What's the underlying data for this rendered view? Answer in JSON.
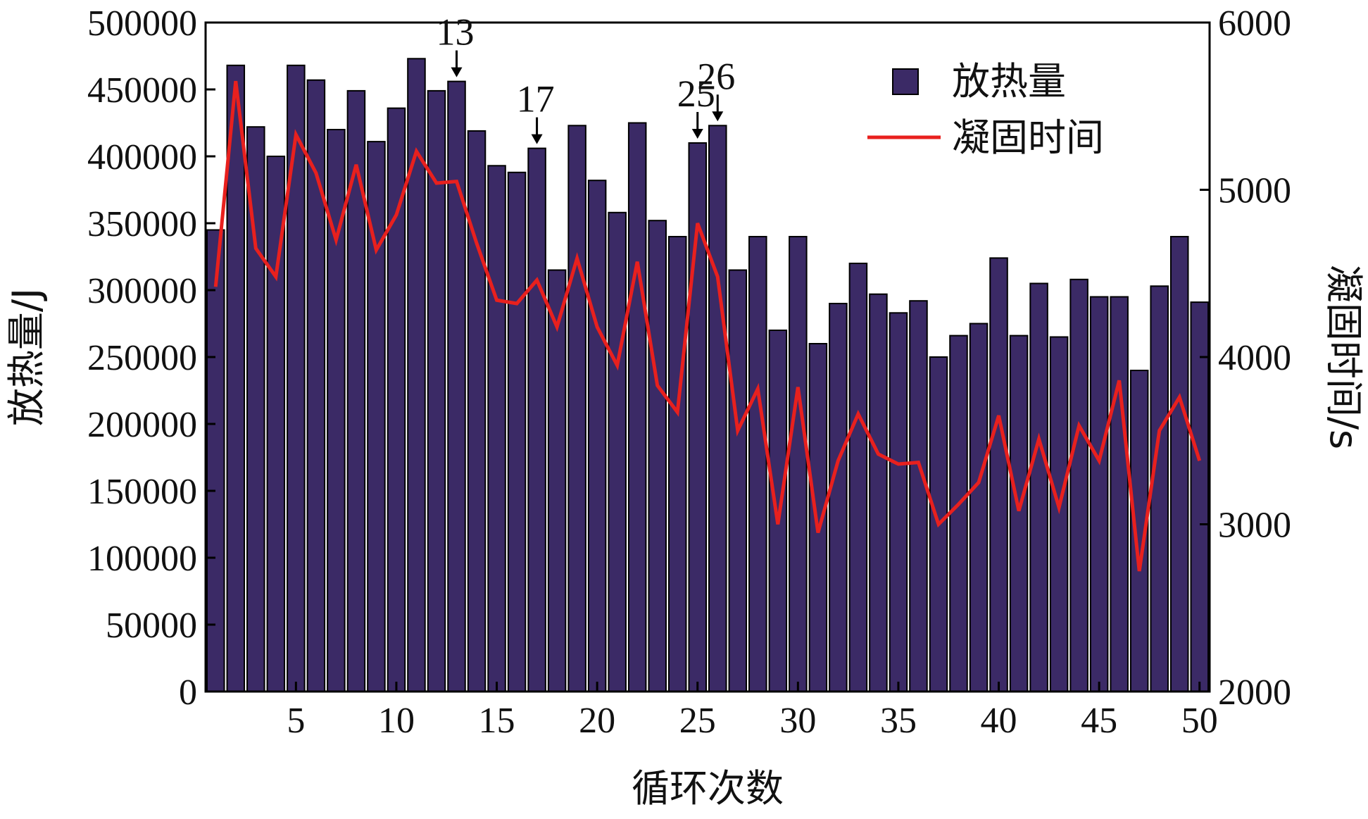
{
  "chart_data": {
    "type": "bar+line",
    "categories": [
      1,
      2,
      3,
      4,
      5,
      6,
      7,
      8,
      9,
      10,
      11,
      12,
      13,
      14,
      15,
      16,
      17,
      18,
      19,
      20,
      21,
      22,
      23,
      24,
      25,
      26,
      27,
      28,
      29,
      30,
      31,
      32,
      33,
      34,
      35,
      36,
      37,
      38,
      39,
      40,
      41,
      42,
      43,
      44,
      45,
      46,
      47,
      48,
      49,
      50
    ],
    "series": [
      {
        "name": "放热量",
        "type": "bar",
        "axis": "left",
        "values": [
          345000,
          468000,
          422000,
          400000,
          468000,
          457000,
          420000,
          449000,
          411000,
          436000,
          473000,
          449000,
          456000,
          419000,
          393000,
          388000,
          406000,
          315000,
          423000,
          382000,
          358000,
          425000,
          352000,
          340000,
          410000,
          423000,
          315000,
          340000,
          270000,
          340000,
          260000,
          290000,
          320000,
          297000,
          283000,
          292000,
          250000,
          266000,
          275000,
          324000,
          266000,
          305000,
          265000,
          308000,
          295000,
          295000,
          240000,
          303000,
          340000,
          291000
        ]
      },
      {
        "name": "凝固时间",
        "type": "line",
        "axis": "right",
        "color": "#e8201e",
        "values": [
          4420,
          5650,
          4650,
          4480,
          5330,
          5100,
          4700,
          5150,
          4640,
          4850,
          5230,
          5040,
          5050,
          4680,
          4340,
          4320,
          4460,
          4180,
          4590,
          4180,
          3950,
          4570,
          3830,
          3670,
          4800,
          4480,
          3560,
          3810,
          3000,
          3820,
          2950,
          3380,
          3660,
          3420,
          3360,
          3370,
          3000,
          3120,
          3250,
          3650,
          3080,
          3510,
          3100,
          3590,
          3380,
          3860,
          2720,
          3560,
          3760,
          3380
        ]
      }
    ],
    "x_ticks": [
      "5",
      "10",
      "15",
      "20",
      "25",
      "30",
      "35",
      "40",
      "45",
      "50"
    ],
    "y_left_ticks": [
      "0",
      "50000",
      "100000",
      "150000",
      "200000",
      "250000",
      "300000",
      "350000",
      "400000",
      "450000",
      "500000"
    ],
    "y_right_ticks": [
      "2000",
      "3000",
      "4000",
      "5000",
      "6000"
    ],
    "ylim_left": [
      0,
      500000
    ],
    "ylim_right": [
      2000,
      6000
    ],
    "xlabel": "循环次数",
    "ylabel_left": "放热量/J",
    "ylabel_right": "凝固时间/s",
    "annotations": [
      "13",
      "17",
      "25",
      "26"
    ],
    "legend": {
      "position": "top-right",
      "items": [
        "放热量",
        "凝固时间"
      ]
    },
    "bar_color": "#3b2a66",
    "grid": false
  }
}
